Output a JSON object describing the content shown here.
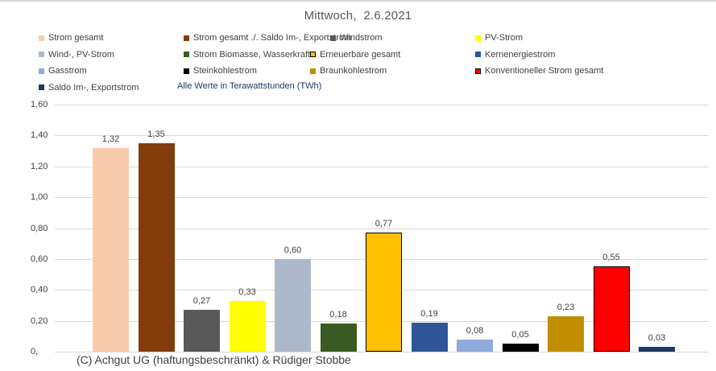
{
  "chart_data": {
    "type": "bar",
    "title": "Mittwoch,  2.6.2021",
    "unit_note": "Alle Werte in Terawattstunden (TWh)",
    "source": "(C) Achgut UG (haftungsbeschränkt) & Rüdiger Stobbe",
    "unit": "TWh",
    "ylim": [
      0,
      1.6
    ],
    "ytick_labels": [
      "1,60",
      "1,40",
      "1,20",
      "1,00",
      "0,80",
      "0,60",
      "0,40",
      "0,20",
      "0,"
    ],
    "grid": true,
    "legend_position": "top",
    "categories": [
      "Strom gesamt",
      "Strom gesamt ./. Saldo Im-, Exportstrom",
      "Windstrom",
      "PV-Strom",
      "Wind-, PV-Strom",
      "Strom Biomasse, Wasserkraft",
      "Erneuerbare gesamt",
      "Kernenergiestrom",
      "Gasstrom",
      "Steinkohlestrom",
      "Braunkohlestrom",
      "Konventioneller Strom gesamt",
      "Saldo Im-, Exportstrom"
    ],
    "values": [
      1.32,
      1.35,
      0.27,
      0.33,
      0.6,
      0.18,
      0.77,
      0.19,
      0.08,
      0.05,
      0.23,
      0.55,
      0.03
    ],
    "value_labels": [
      "1,32",
      "1,35",
      "0,27",
      "0,33",
      "0,60",
      "0,18",
      "0,77",
      "0,19",
      "0,08",
      "0,05",
      "0,23",
      "0,55",
      "0,03"
    ],
    "colors": [
      "#F8CBAD",
      "#843C0C",
      "#595959",
      "#FFFF00",
      "#ADB9CA",
      "#3A5B23",
      "#FFC000",
      "#2F5597",
      "#8FAADC",
      "#000000",
      "#BF8F00",
      "#FF0000",
      "#1F3864"
    ],
    "bar_borders": [
      null,
      null,
      null,
      null,
      null,
      null,
      "#000000",
      null,
      null,
      null,
      null,
      "#000000",
      null
    ]
  },
  "ui_colors": {
    "gridline": "#d9d9d9",
    "title_text": "#595959",
    "axis_text": "#404040",
    "note_text": "#1f3864",
    "top_edge": "#d8d8d8"
  }
}
